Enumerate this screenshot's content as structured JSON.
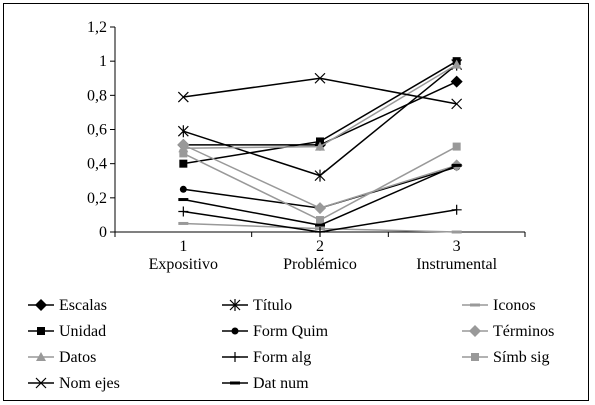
{
  "chart_data": {
    "type": "line",
    "title": "",
    "xlabel": "",
    "ylabel": "",
    "ylim": [
      0,
      1.2
    ],
    "yticks": [
      "0",
      "0,2",
      "0,4",
      "0,6",
      "0,8",
      "1",
      "1,2"
    ],
    "categories": [
      {
        "num": "1",
        "name": "Expositivo"
      },
      {
        "num": "2",
        "name": "Problémico"
      },
      {
        "num": "3",
        "name": "Instrumental"
      }
    ],
    "legend_position": "bottom",
    "grid": false,
    "series": [
      {
        "name": "Escalas",
        "values": [
          0.51,
          0.51,
          0.88
        ],
        "color": "#000000",
        "marker": "diamond"
      },
      {
        "name": "Título",
        "values": [
          0.59,
          0.33,
          0.98
        ],
        "color": "#000000",
        "marker": "asterisk"
      },
      {
        "name": "Iconos",
        "values": [
          0.05,
          0.02,
          0.0
        ],
        "color": "#999999",
        "marker": "dash"
      },
      {
        "name": "Unidad",
        "values": [
          0.4,
          0.53,
          1.0
        ],
        "color": "#000000",
        "marker": "square"
      },
      {
        "name": "Form Quim",
        "values": [
          0.25,
          0.14,
          0.38
        ],
        "color": "#000000",
        "marker": "circle"
      },
      {
        "name": "Términos",
        "values": [
          0.51,
          0.14,
          0.39
        ],
        "color": "#999999",
        "marker": "diamond"
      },
      {
        "name": "Datos",
        "values": [
          0.49,
          0.5,
          0.98
        ],
        "color": "#999999",
        "marker": "triangle"
      },
      {
        "name": "Form alg",
        "values": [
          0.12,
          0.0,
          0.13
        ],
        "color": "#000000",
        "marker": "plus"
      },
      {
        "name": "Símb sig",
        "values": [
          0.46,
          0.07,
          0.5
        ],
        "color": "#999999",
        "marker": "square"
      },
      {
        "name": "Nom ejes",
        "values": [
          0.79,
          0.9,
          0.75
        ],
        "color": "#000000",
        "marker": "x"
      },
      {
        "name": "Dat num",
        "values": [
          0.19,
          0.04,
          0.39
        ],
        "color": "#000000",
        "marker": "dash"
      }
    ]
  }
}
